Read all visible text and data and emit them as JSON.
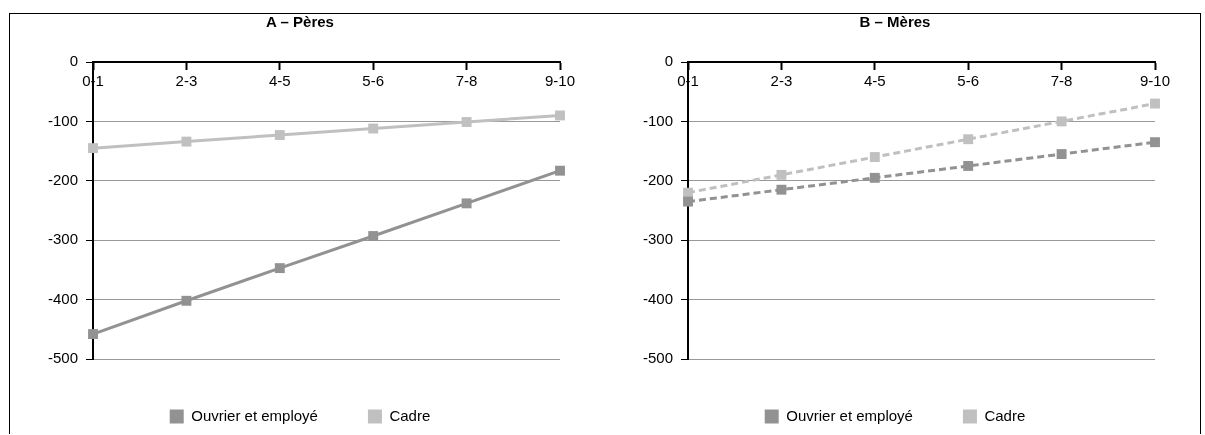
{
  "chart_data": [
    {
      "type": "line",
      "title": "A – Pères",
      "categories": [
        "0-1",
        "2-3",
        "4-5",
        "5-6",
        "7-8",
        "9-10"
      ],
      "series": [
        {
          "name": "Ouvrier et employé",
          "color": "#929292",
          "values": [
            -458,
            -402,
            -347,
            -293,
            -238,
            -183
          ]
        },
        {
          "name": "Cadre",
          "color": "#c0c0c0",
          "values": [
            -145,
            -134,
            -123,
            -112,
            -101,
            -90
          ]
        }
      ],
      "ylim": [
        -500,
        0
      ],
      "yticks": [
        -500,
        -400,
        -300,
        -200,
        -100,
        0
      ],
      "grid": "y",
      "legend": "bottom",
      "marker": "square",
      "line_style": "solid"
    },
    {
      "type": "line",
      "title": "B – Mères",
      "categories": [
        "0-1",
        "2-3",
        "4-5",
        "5-6",
        "7-8",
        "9-10"
      ],
      "series": [
        {
          "name": "Ouvrier et employé",
          "color": "#929292",
          "values": [
            -235,
            -215,
            -195,
            -175,
            -155,
            -135
          ]
        },
        {
          "name": "Cadre",
          "color": "#c0c0c0",
          "values": [
            -220,
            -190,
            -160,
            -130,
            -100,
            -70
          ]
        }
      ],
      "ylim": [
        -500,
        0
      ],
      "yticks": [
        -500,
        -400,
        -300,
        -200,
        -100,
        0
      ],
      "grid": "y",
      "legend": "bottom",
      "marker": "square",
      "line_style": "dashed"
    }
  ]
}
